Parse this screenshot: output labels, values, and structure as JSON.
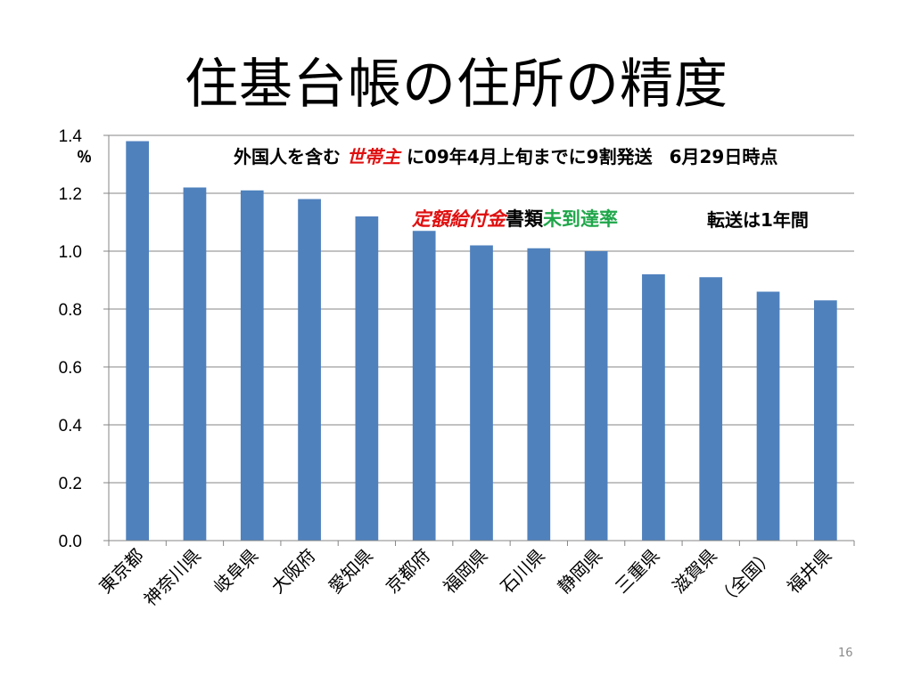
{
  "slide": {
    "title": "住基台帳の住所の精度",
    "unit_label": "％",
    "page_number": "16",
    "note_line1_a": "外国人を含む",
    "note_line1_red": "世帯主",
    "note_line1_b": "に09年4月上旬までに9割発送",
    "note_line1_c": "6月29日時点",
    "note_line2_red": "定額給付金",
    "note_line2_black": "書類",
    "note_line2_green": "未到達率",
    "note_transfer": "転送は1年間"
  },
  "colors": {
    "bar": "#4f81bd",
    "grid": "#868686",
    "note_red": "#e01010",
    "note_green": "#1fa64a"
  },
  "chart_data": {
    "type": "bar",
    "title": "",
    "xlabel": "",
    "ylabel": "％",
    "ylim": [
      0,
      1.4
    ],
    "yticks": [
      "0.0",
      "0.2",
      "0.4",
      "0.6",
      "0.8",
      "1.0",
      "1.2",
      "1.4"
    ],
    "grid": true,
    "categories": [
      "東京都",
      "神奈川県",
      "岐阜県",
      "大阪府",
      "愛知県",
      "京都府",
      "福岡県",
      "石川県",
      "静岡県",
      "三重県",
      "滋賀県",
      "（全国）",
      "福井県"
    ],
    "values": [
      1.38,
      1.22,
      1.21,
      1.18,
      1.12,
      1.07,
      1.02,
      1.01,
      1.0,
      0.92,
      0.91,
      0.86,
      0.83
    ]
  }
}
